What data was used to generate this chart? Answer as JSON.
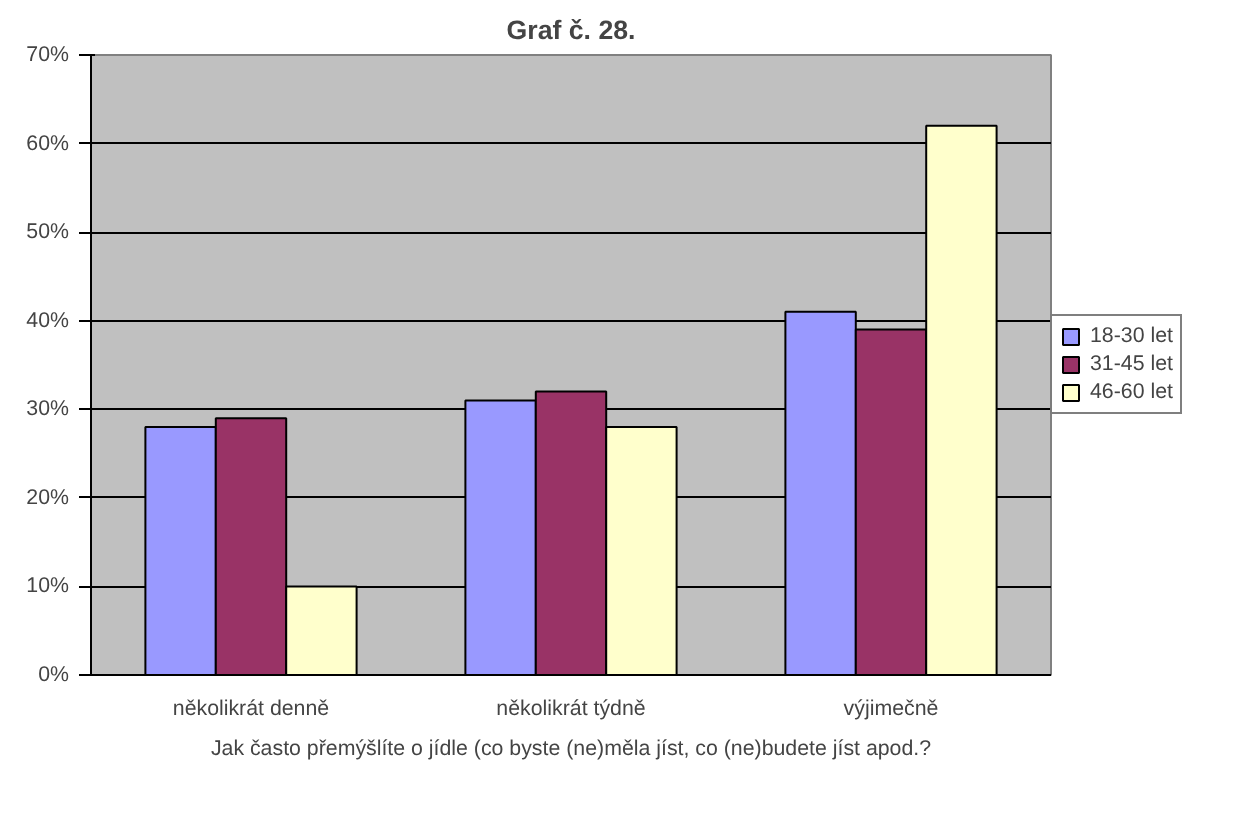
{
  "chart_data": {
    "type": "bar",
    "title": "Graf č. 28.",
    "xlabel": "Jak často přemýšlíte o jídle (co byste (ne)měla jíst, co (ne)budete jíst apod.?",
    "categories": [
      "několikrát denně",
      "několikrát týdně",
      "výjimečně"
    ],
    "series": [
      {
        "name": "18-30 let",
        "color": "#9999ff",
        "values": [
          28,
          31,
          41
        ]
      },
      {
        "name": "31-45 let",
        "color": "#993366",
        "values": [
          29,
          32,
          39
        ]
      },
      {
        "name": "46-60 let",
        "color": "#ffffcc",
        "values": [
          10,
          28,
          62
        ]
      }
    ],
    "ylim": [
      0,
      70
    ],
    "yticks": [
      {
        "value": 0,
        "label": "0%"
      },
      {
        "value": 10,
        "label": "10%"
      },
      {
        "value": 20,
        "label": "20%"
      },
      {
        "value": 30,
        "label": "30%"
      },
      {
        "value": 40,
        "label": "40%"
      },
      {
        "value": 50,
        "label": "50%"
      },
      {
        "value": 60,
        "label": "60%"
      },
      {
        "value": 70,
        "label": "70%"
      }
    ],
    "grid": "y",
    "legend": "right"
  }
}
